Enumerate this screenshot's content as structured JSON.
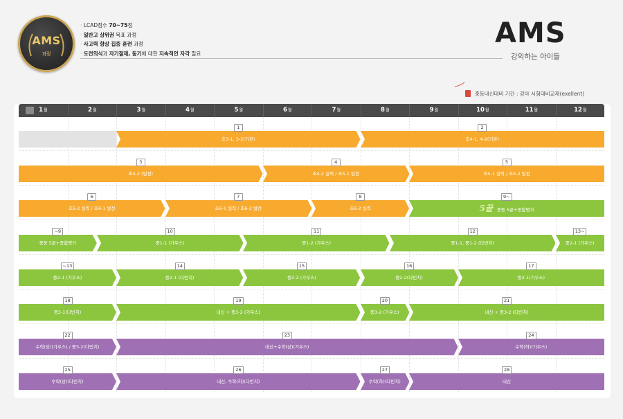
{
  "badge": {
    "title": "AMS",
    "subtitle": "과정"
  },
  "bullets": [
    [
      {
        "t": "LCAD점수 "
      },
      {
        "t": "70~75",
        "b": true
      },
      {
        "t": "점"
      }
    ],
    [
      {
        "t": "일반고 상위권",
        "b": true
      },
      {
        "t": " 목표 과정"
      }
    ],
    [
      {
        "t": "사고력 향상 집중 훈련",
        "b": true
      },
      {
        "t": " 과정"
      }
    ],
    [
      {
        "t": "도전의식",
        "b": true
      },
      {
        "t": "과 "
      },
      {
        "t": "자기절제, 동기",
        "b": true
      },
      {
        "t": "에 대한 "
      },
      {
        "t": "지속적인 자각",
        "b": true
      },
      {
        "t": " 필요"
      }
    ]
  ],
  "brand": {
    "title": "AMS",
    "subtitle": "강의하는 아이들"
  },
  "note": "중등내신대비 기간 : 강아 시험대비교재(exellent)",
  "months": [
    {
      "n": "1",
      "u": "월"
    },
    {
      "n": "2",
      "u": "월"
    },
    {
      "n": "3",
      "u": "월"
    },
    {
      "n": "4",
      "u": "월"
    },
    {
      "n": "5",
      "u": "월"
    },
    {
      "n": "6",
      "u": "월"
    },
    {
      "n": "7",
      "u": "월"
    },
    {
      "n": "8",
      "u": "월"
    },
    {
      "n": "9",
      "u": "월"
    },
    {
      "n": "10",
      "u": "월"
    },
    {
      "n": "11",
      "u": "월"
    },
    {
      "n": "12",
      "u": "월"
    }
  ],
  "colors": {
    "orange": "#f7aa2e",
    "green": "#8cc63f",
    "purple": "#a070b4",
    "gray": "#e3e3e3",
    "header": "#4a4a4a"
  },
  "rows": [
    {
      "segments": [
        {
          "start": 1,
          "end": 3,
          "color": "gray",
          "label": "",
          "num": ""
        },
        {
          "start": 3,
          "end": 8,
          "color": "orange",
          "label": "초3-1, 3-2(기본)",
          "num": "1"
        },
        {
          "start": 8,
          "end": 13,
          "color": "orange",
          "label": "초4-1, 4-2(기본)",
          "num": "2"
        }
      ]
    },
    {
      "segments": [
        {
          "start": 1,
          "end": 6,
          "color": "orange",
          "label": "초4-2 (발전)",
          "num": "3"
        },
        {
          "start": 6,
          "end": 9,
          "color": "orange",
          "label": "초4-2 실력 / 초5-1 발전",
          "num": "4"
        },
        {
          "start": 9,
          "end": 13,
          "color": "orange",
          "label": "초5-1 실력 / 초5-2 발전",
          "num": "5"
        }
      ]
    },
    {
      "segments": [
        {
          "start": 1,
          "end": 4.0,
          "color": "orange",
          "label": "초5-2 실력 / 초6-1 발전",
          "num": "6"
        },
        {
          "start": 4.0,
          "end": 7.0,
          "color": "orange",
          "label": "초6-1 실력 / 초6-2 발전",
          "num": "7"
        },
        {
          "start": 7.0,
          "end": 9,
          "color": "orange",
          "label": "초6-2 실력",
          "num": "8"
        },
        {
          "start": 9,
          "end": 13,
          "color": "green",
          "label": "중등 5끝+종합평가",
          "num": "9~",
          "special": "5끝"
        }
      ]
    },
    {
      "segments": [
        {
          "start": 1,
          "end": 2.6,
          "color": "green",
          "label": "중등 5끝+종합평가",
          "num": "~9"
        },
        {
          "start": 2.6,
          "end": 5.6,
          "color": "green",
          "label": "중1-1 (가우스)",
          "num": "10"
        },
        {
          "start": 5.6,
          "end": 8.6,
          "color": "green",
          "label": "중1-2 (가우스)",
          "num": "11"
        },
        {
          "start": 8.6,
          "end": 12.0,
          "color": "green",
          "label": "중1-1, 중1-2 (다빈치)",
          "num": "12"
        },
        {
          "start": 12.0,
          "end": 13,
          "color": "green",
          "label": "중2-1 (가우스)",
          "num": "13~"
        }
      ]
    },
    {
      "segments": [
        {
          "start": 1,
          "end": 3,
          "color": "green",
          "label": "중2-1 (가우스)",
          "num": "~13"
        },
        {
          "start": 3,
          "end": 5.6,
          "color": "green",
          "label": "중2-1 (다빈치)",
          "num": "14"
        },
        {
          "start": 5.6,
          "end": 8,
          "color": "green",
          "label": "중2-2 (가우스)",
          "num": "15"
        },
        {
          "start": 8,
          "end": 10.0,
          "color": "green",
          "label": "중2-2(다빈치)",
          "num": "16"
        },
        {
          "start": 10.0,
          "end": 13,
          "color": "green",
          "label": "중3-1(가우스)",
          "num": "17"
        }
      ]
    },
    {
      "segments": [
        {
          "start": 1,
          "end": 3,
          "color": "green",
          "label": "중3-1(다빈치)",
          "num": "18"
        },
        {
          "start": 3,
          "end": 8,
          "color": "green",
          "label": "내신 + 중3-2 (가우스)",
          "num": "19"
        },
        {
          "start": 8,
          "end": 9,
          "color": "green",
          "label": "중3-2 (가우스)",
          "num": "20"
        },
        {
          "start": 9,
          "end": 13,
          "color": "green",
          "label": "내신 + 중3-2 (다빈치)",
          "num": "21"
        }
      ]
    },
    {
      "segments": [
        {
          "start": 1,
          "end": 3,
          "color": "purple",
          "label": "수학(상)(가우스) / 중3-2(다빈치)",
          "num": "22"
        },
        {
          "start": 3,
          "end": 10.0,
          "color": "purple",
          "label": "내신+수학(상)(가우스)",
          "num": "23"
        },
        {
          "start": 10.0,
          "end": 13,
          "color": "purple",
          "label": "수학(하)(가우스)",
          "num": "24"
        }
      ]
    },
    {
      "segments": [
        {
          "start": 1,
          "end": 3,
          "color": "purple",
          "label": "수학(상)(다빈치)",
          "num": "25"
        },
        {
          "start": 3,
          "end": 8,
          "color": "purple",
          "label": "내신, 수학(하)(다빈치)",
          "num": "26"
        },
        {
          "start": 8,
          "end": 9,
          "color": "purple",
          "label": "수학(하)(다빈치)",
          "num": "27"
        },
        {
          "start": 9,
          "end": 13,
          "color": "purple",
          "label": "내신",
          "num": "28"
        }
      ]
    }
  ]
}
